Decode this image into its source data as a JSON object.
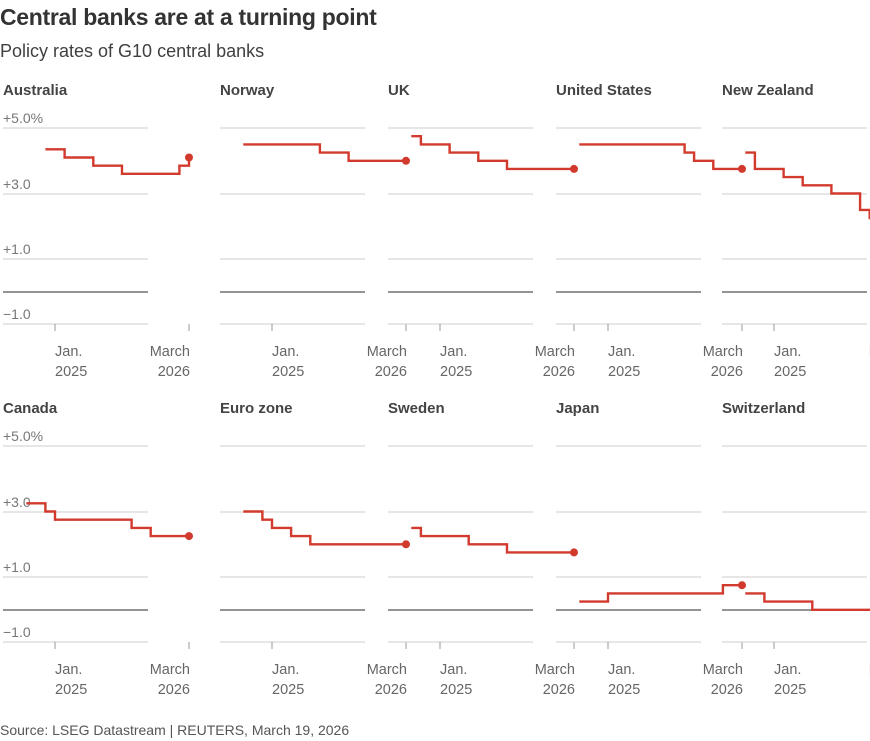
{
  "title": "Central banks are at a turning point",
  "subtitle": "Policy rates of G10 central banks",
  "source": "Source: LSEG Datastream | REUTERS, March 19, 2026",
  "colors": {
    "line": "#d23a2e",
    "grid": "#cccccc",
    "zero": "#555555",
    "text": "#333333"
  },
  "chart_data": {
    "type": "line",
    "step": true,
    "layout": "small-multiples",
    "ylim": [
      -1.5,
      5.0
    ],
    "y_ticks": [
      5.0,
      3.0,
      1.0,
      -1.0
    ],
    "y_tick_labels": [
      "+5.0%",
      "+3.0",
      "+1.0",
      "−1.0"
    ],
    "x_ticks": [
      {
        "date": "2025-01",
        "label_line1": "Jan.",
        "label_line2": "2025"
      },
      {
        "date": "2026-03",
        "label_line1": "March",
        "label_line2": "2026"
      }
    ],
    "xlim": [
      "2024-10",
      "2026-04"
    ],
    "series": [
      {
        "name": "Australia",
        "points": [
          [
            "2024-12",
            4.35
          ],
          [
            "2025-02",
            4.1
          ],
          [
            "2025-05",
            3.85
          ],
          [
            "2025-08",
            3.6
          ],
          [
            "2026-02",
            3.85
          ],
          [
            "2026-03",
            4.1
          ]
        ]
      },
      {
        "name": "Norway",
        "points": [
          [
            "2024-10",
            4.5
          ],
          [
            "2025-06",
            4.25
          ],
          [
            "2025-09",
            4.0
          ],
          [
            "2026-03",
            4.0
          ]
        ]
      },
      {
        "name": "UK",
        "points": [
          [
            "2024-10",
            4.75
          ],
          [
            "2024-11",
            4.5
          ],
          [
            "2025-02",
            4.25
          ],
          [
            "2025-05",
            4.0
          ],
          [
            "2025-08",
            3.75
          ],
          [
            "2026-03",
            3.75
          ]
        ]
      },
      {
        "name": "United States",
        "points": [
          [
            "2024-10",
            4.5
          ],
          [
            "2025-09",
            4.25
          ],
          [
            "2025-10",
            4.0
          ],
          [
            "2025-12",
            3.75
          ],
          [
            "2026-03",
            3.75
          ]
        ]
      },
      {
        "name": "New Zealand",
        "points": [
          [
            "2024-10",
            4.25
          ],
          [
            "2024-11",
            3.75
          ],
          [
            "2025-02",
            3.5
          ],
          [
            "2025-04",
            3.25
          ],
          [
            "2025-07",
            3.0
          ],
          [
            "2025-10",
            2.5
          ],
          [
            "2025-11",
            2.25
          ],
          [
            "2026-03",
            2.25
          ]
        ]
      },
      {
        "name": "Canada",
        "points": [
          [
            "2024-10",
            3.25
          ],
          [
            "2024-12",
            3.0
          ],
          [
            "2025-01",
            2.75
          ],
          [
            "2025-09",
            2.5
          ],
          [
            "2025-11",
            2.25
          ],
          [
            "2026-03",
            2.25
          ]
        ]
      },
      {
        "name": "Euro zone",
        "points": [
          [
            "2024-10",
            3.0
          ],
          [
            "2024-12",
            2.75
          ],
          [
            "2025-01",
            2.5
          ],
          [
            "2025-03",
            2.25
          ],
          [
            "2025-05",
            2.0
          ],
          [
            "2026-03",
            2.0
          ]
        ]
      },
      {
        "name": "Sweden",
        "points": [
          [
            "2024-10",
            2.5
          ],
          [
            "2024-11",
            2.25
          ],
          [
            "2025-04",
            2.0
          ],
          [
            "2025-08",
            1.75
          ],
          [
            "2026-03",
            1.75
          ]
        ]
      },
      {
        "name": "Japan",
        "points": [
          [
            "2024-10",
            0.25
          ],
          [
            "2025-01",
            0.5
          ],
          [
            "2026-01",
            0.75
          ],
          [
            "2026-03",
            0.75
          ]
        ]
      },
      {
        "name": "Switzerland",
        "points": [
          [
            "2024-10",
            0.5
          ],
          [
            "2024-12",
            0.25
          ],
          [
            "2025-05",
            0.0
          ],
          [
            "2026-03",
            0.0
          ]
        ]
      }
    ]
  }
}
